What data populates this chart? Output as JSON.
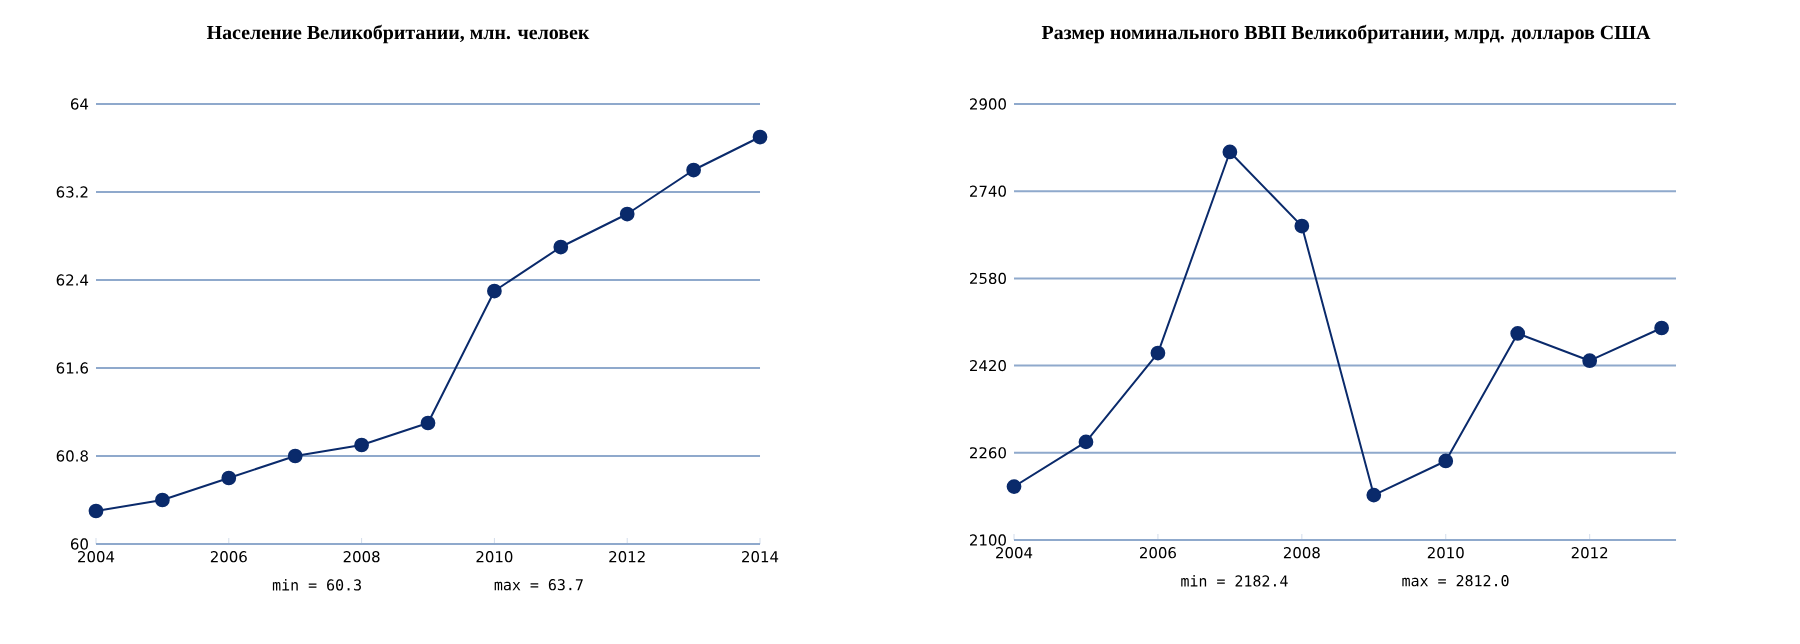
{
  "chart_data": [
    {
      "type": "line",
      "title": "Население Великобритании, млн. человек",
      "x": [
        2004,
        2005,
        2006,
        2007,
        2008,
        2009,
        2010,
        2011,
        2012,
        2013,
        2014
      ],
      "values": [
        60.3,
        60.4,
        60.6,
        60.8,
        60.9,
        61.1,
        62.3,
        62.7,
        63.0,
        63.4,
        63.7
      ],
      "color": "#0a2a6b",
      "xlim": [
        2004,
        2014
      ],
      "xticks": [
        2004,
        2006,
        2008,
        2010,
        2012,
        2014
      ],
      "ylim": [
        60,
        64
      ],
      "yticks": [
        60,
        60.8,
        61.6,
        62.4,
        63.2,
        64
      ],
      "grid": "y",
      "marker": "circle",
      "annotations": [
        "min = 60.3",
        "max = 63.7"
      ]
    },
    {
      "type": "line",
      "title": "Размер номинального ВВП Великобритании, млрд. долларов США",
      "x": [
        2004,
        2005,
        2006,
        2007,
        2008,
        2009,
        2010,
        2011,
        2012,
        2013
      ],
      "values": [
        2198,
        2280,
        2443,
        2812.0,
        2676,
        2182.4,
        2245,
        2479,
        2429,
        2489
      ],
      "color": "#0a2a6b",
      "xlim": [
        2004,
        2013.2
      ],
      "xticks": [
        2004,
        2006,
        2008,
        2010,
        2012
      ],
      "ylim": [
        2100,
        2900
      ],
      "yticks": [
        2100,
        2260,
        2420,
        2580,
        2740,
        2900
      ],
      "grid": "y",
      "marker": "circle",
      "annotations": [
        "min = 2182.4",
        "max = 2812.0"
      ]
    }
  ]
}
